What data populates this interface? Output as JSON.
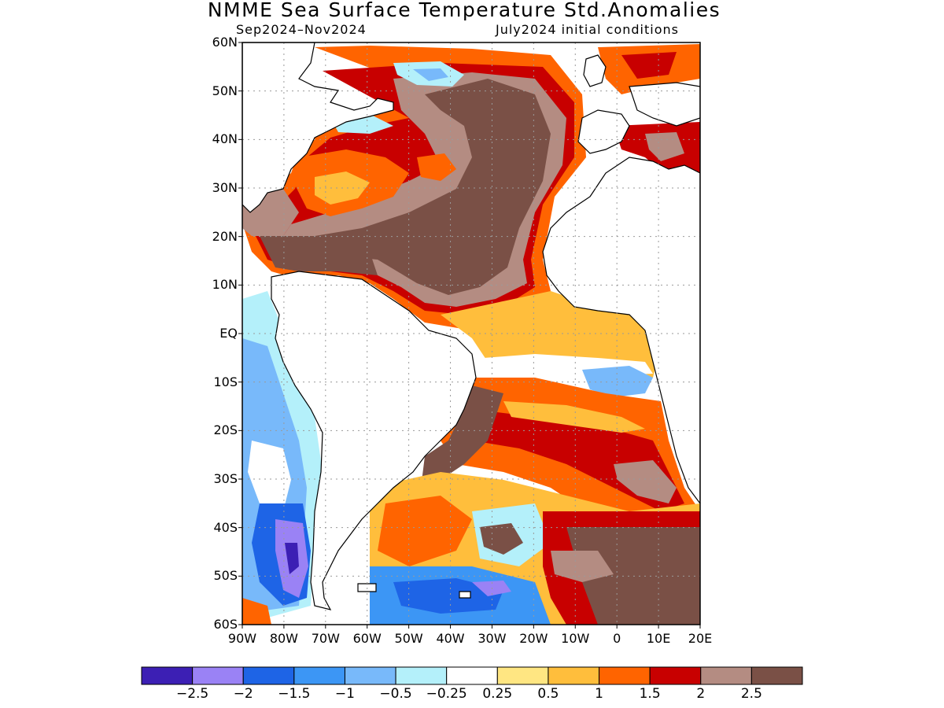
{
  "title": "NMME Sea Surface Temperature Std.Anomalies",
  "subtitle_left": "Sep2024–Nov2024",
  "subtitle_right": "July2024 initial conditions",
  "lat_labels": [
    "60N",
    "50N",
    "40N",
    "30N",
    "20N",
    "10N",
    "EQ",
    "10S",
    "20S",
    "30S",
    "40S",
    "50S",
    "60S"
  ],
  "lon_labels": [
    "90W",
    "80W",
    "70W",
    "60W",
    "50W",
    "40W",
    "30W",
    "20W",
    "10W",
    "0",
    "10E",
    "20E"
  ],
  "colorbar": {
    "colors": [
      "#3c1fb4",
      "#9a82f5",
      "#1e64e6",
      "#3c96f5",
      "#78b9fa",
      "#b4f0fa",
      "#ffffff",
      "#ffe682",
      "#ffbe3c",
      "#ff6400",
      "#c80000",
      "#b48c82",
      "#7a5046"
    ],
    "labels": [
      "−2.5",
      "−2",
      "−1.5",
      "−1",
      "−0.5",
      "−0.25",
      "0.25",
      "0.5",
      "1",
      "1.5",
      "2",
      "2.5"
    ]
  },
  "map": {
    "lat_range": [
      -60,
      60
    ],
    "lon_range": [
      -90,
      20
    ]
  }
}
